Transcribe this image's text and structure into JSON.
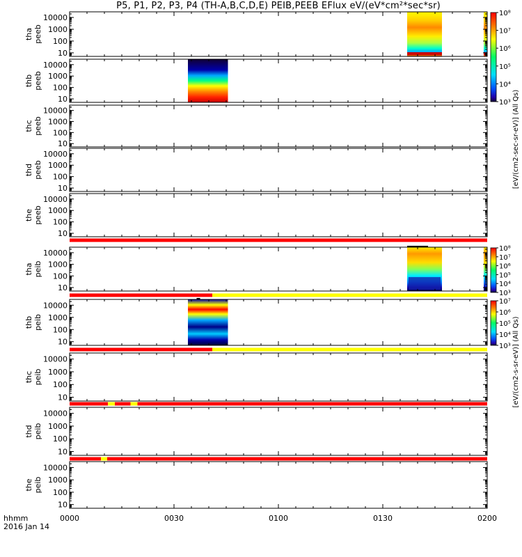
{
  "page": {
    "title": "P5, P1, P2, P3, P4 (TH-A,B,C,D,E) PEIB,PEEB EFlux eV/(eV*cm²*sec*sr)",
    "footer_label": "hhmm",
    "footer_date": "2016 Jan 14"
  },
  "chart_data": {
    "type": "heatmap",
    "x_tick_labels": [
      "0000",
      "0030",
      "0100",
      "0130",
      "0200"
    ],
    "x_ticks_minutes": [
      0,
      30,
      60,
      90,
      120
    ],
    "x_range_minutes": [
      0,
      120
    ],
    "y_scale": "log",
    "y_range": [
      5,
      30000
    ],
    "y_tick_labels": [
      "10",
      "100",
      "1000",
      "10000"
    ],
    "colorbar_label_top": "[eV/(cm2-sec-sr-eV)] (All Qs)",
    "colorbar_label_bottom": "[eV/(cm2-s-sr-eV)] (All Qs)",
    "colorbars": [
      {
        "name": "peeb",
        "ticks": [
          "10³",
          "10⁴",
          "10⁵",
          "10⁶",
          "10⁷",
          "10⁸"
        ],
        "log_min": 3,
        "log_max": 8
      },
      {
        "name": "peib",
        "ticks": [
          "10³",
          "10⁴",
          "10⁵",
          "10⁶",
          "10⁷"
        ],
        "log_min": 3,
        "log_max": 7
      }
    ],
    "colors": {
      "red": "#ff0000",
      "yellow": "#ffff00",
      "black": "#000000",
      "white": "#ffffff"
    },
    "panels": [
      {
        "label": [
          "tha",
          "peeb"
        ],
        "data": [
          {
            "t0": 97,
            "t1": 107,
            "kind": "electron",
            "intense": true
          },
          {
            "t0": 119,
            "t1": 120,
            "kind": "electron"
          }
        ]
      },
      {
        "label": [
          "thb",
          "peeb"
        ],
        "data": [
          {
            "t0": 34,
            "t1": 45.5,
            "kind": "electron"
          }
        ]
      },
      {
        "label": [
          "thc",
          "peeb"
        ],
        "data": []
      },
      {
        "label": [
          "thd",
          "peeb"
        ],
        "data": []
      },
      {
        "label": [
          "the",
          "peeb"
        ],
        "data": []
      },
      {
        "label": [
          "tha",
          "peib"
        ],
        "data": [
          {
            "t0": 97,
            "t1": 107,
            "kind": "ion"
          },
          {
            "t0": 119,
            "t1": 120,
            "kind": "ion"
          }
        ]
      },
      {
        "label": [
          "thb",
          "peib"
        ],
        "data": [
          {
            "t0": 34,
            "t1": 45.5,
            "kind": "ion"
          }
        ]
      },
      {
        "label": [
          "thc",
          "peib"
        ],
        "data": []
      },
      {
        "label": [
          "thd",
          "peib"
        ],
        "data": []
      },
      {
        "label": [
          "the",
          "peib"
        ],
        "data": []
      }
    ],
    "flag_bars": [
      {
        "after_panel": 4,
        "segments": [
          {
            "t0": 0,
            "t1": 120,
            "color": "red"
          }
        ]
      },
      {
        "after_panel": 5,
        "segments": [
          {
            "t0": 0,
            "t1": 41,
            "color": "red"
          },
          {
            "t0": 41,
            "t1": 120,
            "color": "yellow"
          }
        ]
      },
      {
        "after_panel": 6,
        "segments": [
          {
            "t0": 0,
            "t1": 41,
            "color": "red"
          },
          {
            "t0": 41,
            "t1": 120,
            "color": "yellow"
          }
        ]
      },
      {
        "after_panel": 7,
        "segments": [
          {
            "t0": 0,
            "t1": 11,
            "color": "red"
          },
          {
            "t0": 11,
            "t1": 13,
            "color": "yellow"
          },
          {
            "t0": 13,
            "t1": 17.5,
            "color": "red"
          },
          {
            "t0": 17.5,
            "t1": 19.5,
            "color": "yellow"
          },
          {
            "t0": 19.5,
            "t1": 120,
            "color": "red"
          }
        ]
      },
      {
        "after_panel": 8,
        "segments": [
          {
            "t0": 0,
            "t1": 9,
            "color": "red"
          },
          {
            "t0": 9,
            "t1": 10.8,
            "color": "yellow"
          },
          {
            "t0": 10.8,
            "t1": 120,
            "color": "red"
          }
        ]
      }
    ],
    "top_marks": [
      {
        "panel": 5,
        "t0": 97,
        "t1": 103,
        "color": "black"
      },
      {
        "panel": 6,
        "t0": 36.5,
        "t1": 37.5,
        "color": "black"
      }
    ]
  }
}
